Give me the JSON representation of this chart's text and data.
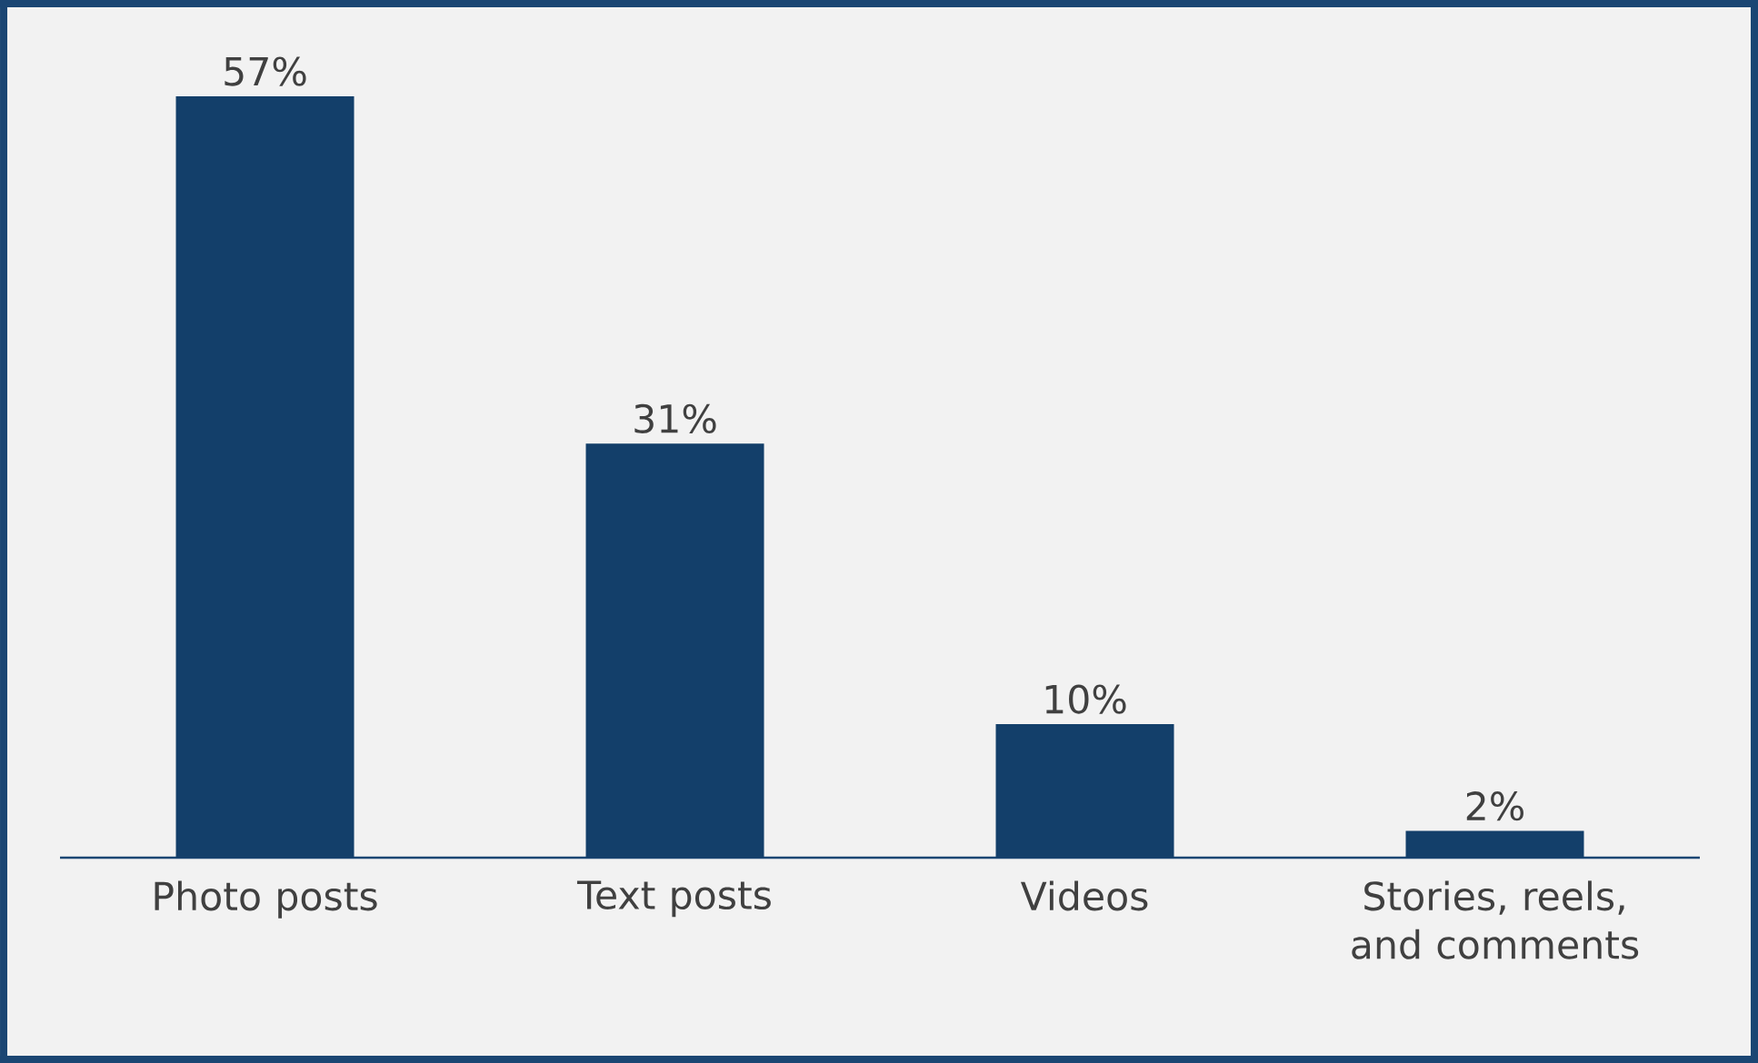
{
  "chart_data": {
    "type": "bar",
    "categories": [
      "Photo posts",
      "Text posts",
      "Videos",
      "Stories, reels, and comments"
    ],
    "values": [
      57,
      31,
      10,
      2
    ],
    "value_labels": [
      "57%",
      "31%",
      "10%",
      "2%"
    ],
    "color": "#133f6a"
  }
}
